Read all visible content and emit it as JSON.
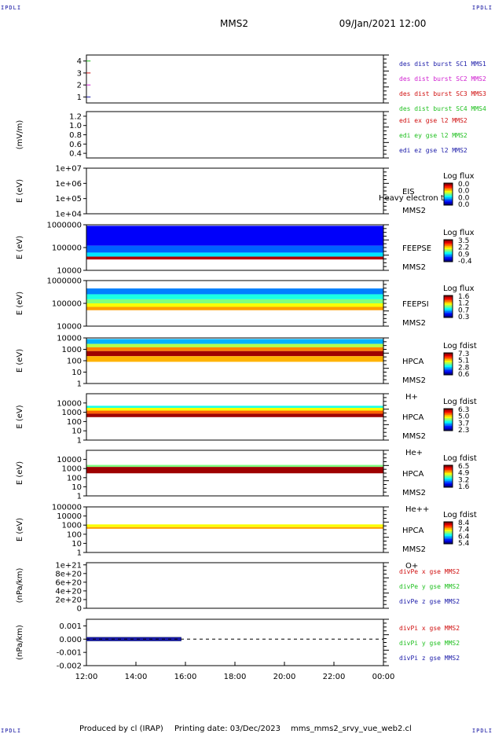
{
  "corners": {
    "tl": "IPDLI",
    "tr": "IPDLI",
    "bl": "IPDLI",
    "br": "IPDLI"
  },
  "header": {
    "title": "MMS2",
    "datetime": "09/Jan/2021 12:00"
  },
  "footer": {
    "producer": "Produced by cl (IRAP)",
    "printing": "Printing date: 03/Dec/2023",
    "script": "mms_mms2_srvy_vue_web2.cl"
  },
  "x_axis": {
    "ticks": [
      "12:00",
      "14:00",
      "16:00",
      "18:00",
      "20:00",
      "22:00",
      "00:00"
    ]
  },
  "colors": {
    "blue": "#1a1aa8",
    "magenta": "#d020d0",
    "red": "#d01010",
    "green": "#20c020",
    "spectrogram_bg": "#0000c8"
  },
  "chart_data": [
    {
      "type": "line",
      "panel": "des-dist-burst",
      "ylabel": "",
      "yticks": [
        "1",
        "2",
        "3",
        "4"
      ],
      "ylim": [
        0.5,
        4.5
      ],
      "series": [
        {
          "name": "des dist burst SC1 MMS1",
          "color": "#1a1aa8",
          "x": [
            "12:00",
            "12:10"
          ],
          "values": [
            1,
            1
          ]
        },
        {
          "name": "des dist burst SC2 MMS2",
          "color": "#d020d0",
          "x": [
            "12:00",
            "12:10"
          ],
          "values": [
            2,
            2
          ]
        },
        {
          "name": "des dist burst SC3 MMS3",
          "color": "#d01010",
          "x": [
            "12:00",
            "12:10"
          ],
          "values": [
            3,
            3
          ]
        },
        {
          "name": "des dist burst SC4 MMS4",
          "color": "#20c020",
          "x": [
            "12:00",
            "12:10"
          ],
          "values": [
            4,
            4
          ]
        }
      ]
    },
    {
      "type": "line",
      "panel": "edi-e-field",
      "ylabel": "(mV/m)",
      "yticks": [
        "0.4",
        "0.6",
        "0.8",
        "1.0",
        "1.2"
      ],
      "ylim": [
        0.3,
        1.3
      ],
      "series": [
        {
          "name": "edi ex gse l2 MMS2",
          "color": "#d01010",
          "x": [],
          "values": []
        },
        {
          "name": "edi ey gse l2 MMS2",
          "color": "#20c020",
          "x": [],
          "values": []
        },
        {
          "name": "edi ez gse l2 MMS2",
          "color": "#1a1aa8",
          "x": [],
          "values": []
        }
      ]
    },
    {
      "type": "heatmap",
      "panel": "eis",
      "ylabel": "E (eV)",
      "yticks": [
        "1e+04",
        "1e+05",
        "1e+06",
        "1e+07"
      ],
      "ylim": [
        10000,
        10000000
      ],
      "label": [
        "EIS",
        "MMS2"
      ],
      "overlay_text": "Heavy electron tc",
      "colorbar_title": "Log flux",
      "colorbar_ticks": [
        "0.0",
        "0.0",
        "0.0",
        "0.0"
      ],
      "bands": []
    },
    {
      "type": "heatmap",
      "panel": "feeps-e",
      "ylabel": "E (eV)",
      "yticks": [
        "10000",
        "100000",
        "1000000"
      ],
      "ylim": [
        10000,
        1000000
      ],
      "label": [
        "FEEPSE",
        "MMS2"
      ],
      "colorbar_title": "Log flux",
      "colorbar_ticks": [
        "3.5",
        "2.2",
        "0.9",
        "-0.4"
      ],
      "bands": [
        {
          "e_from": 900000,
          "e_to": 120000,
          "level": 0.12
        },
        {
          "e_from": 120000,
          "e_to": 60000,
          "level": 0.22
        },
        {
          "e_from": 60000,
          "e_to": 40000,
          "level": 0.35
        },
        {
          "e_from": 40000,
          "e_to": 30000,
          "level": 0.95
        }
      ]
    },
    {
      "type": "heatmap",
      "panel": "feeps-i",
      "ylabel": "E (eV)",
      "yticks": [
        "10000",
        "100000",
        "1000000"
      ],
      "ylim": [
        10000,
        1000000
      ],
      "label": [
        "FEEPSI",
        "MMS2"
      ],
      "colorbar_title": "Log flux",
      "colorbar_ticks": [
        "1.6",
        "1.2",
        "0.7",
        "0.3"
      ],
      "bands": [
        {
          "e_from": 450000,
          "e_to": 250000,
          "level": 0.25
        },
        {
          "e_from": 250000,
          "e_to": 150000,
          "level": 0.4
        },
        {
          "e_from": 150000,
          "e_to": 100000,
          "level": 0.5
        },
        {
          "e_from": 100000,
          "e_to": 70000,
          "level": 0.62
        },
        {
          "e_from": 70000,
          "e_to": 50000,
          "level": 0.72
        }
      ]
    },
    {
      "type": "heatmap",
      "panel": "hpca-h",
      "ylabel": "E (eV)",
      "yticks": [
        "1",
        "10",
        "100",
        "1000",
        "10000"
      ],
      "ylim": [
        1,
        10000
      ],
      "label": [
        "HPCA",
        "MMS2",
        "H+"
      ],
      "colorbar_title": "Log fdist",
      "colorbar_ticks": [
        "7.3",
        "5.1",
        "2.8",
        "0.6"
      ],
      "bands": [
        {
          "e_from": 8000,
          "e_to": 3000,
          "level": 0.3
        },
        {
          "e_from": 3000,
          "e_to": 1500,
          "level": 0.55
        },
        {
          "e_from": 1500,
          "e_to": 700,
          "level": 0.75
        },
        {
          "e_from": 700,
          "e_to": 250,
          "level": 0.97
        },
        {
          "e_from": 250,
          "e_to": 80,
          "level": 0.7
        }
      ]
    },
    {
      "type": "heatmap",
      "panel": "hpca-he",
      "ylabel": "E (eV)",
      "yticks": [
        "1",
        "10",
        "100",
        "1000",
        "10000"
      ],
      "ylim": [
        1,
        100000
      ],
      "label": [
        "HPCA",
        "MMS2",
        "He+"
      ],
      "colorbar_title": "Log fdist",
      "colorbar_ticks": [
        "6.3",
        "5.0",
        "3.7",
        "2.3"
      ],
      "bands": [
        {
          "e_from": 5000,
          "e_to": 3000,
          "level": 0.4
        },
        {
          "e_from": 3000,
          "e_to": 1500,
          "level": 0.62
        },
        {
          "e_from": 1500,
          "e_to": 700,
          "level": 0.78
        },
        {
          "e_from": 700,
          "e_to": 300,
          "level": 0.97
        }
      ]
    },
    {
      "type": "heatmap",
      "panel": "hpca-he2",
      "ylabel": "E (eV)",
      "yticks": [
        "1",
        "10",
        "100",
        "1000",
        "10000"
      ],
      "ylim": [
        1,
        100000
      ],
      "label": [
        "HPCA",
        "MMS2",
        "He++"
      ],
      "colorbar_title": "Log fdist",
      "colorbar_ticks": [
        "6.5",
        "4.9",
        "3.2",
        "1.6"
      ],
      "bands": [
        {
          "e_from": 2500,
          "e_to": 1500,
          "level": 0.5
        },
        {
          "e_from": 1500,
          "e_to": 300,
          "level": 0.97
        }
      ]
    },
    {
      "type": "heatmap",
      "panel": "hpca-o",
      "ylabel": "E (eV)",
      "yticks": [
        "1",
        "10",
        "100",
        "1000",
        "10000",
        "100000"
      ],
      "ylim": [
        1,
        100000
      ],
      "label": [
        "HPCA",
        "MMS2",
        "O+"
      ],
      "colorbar_title": "Log fdist",
      "colorbar_ticks": [
        "8.4",
        "7.4",
        "6.4",
        "5.4"
      ],
      "bands": [
        {
          "e_from": 1200,
          "e_to": 600,
          "level": 0.62
        },
        {
          "e_from": 600,
          "e_to": 400,
          "level": 0.72
        }
      ]
    },
    {
      "type": "line",
      "panel": "divpe",
      "ylabel": "(nPa/km)",
      "yticks": [
        "0",
        "2e+20",
        "4e+20",
        "6e+20",
        "8e+20",
        "1e+21"
      ],
      "ylim": [
        0,
        1.05e+21
      ],
      "series": [
        {
          "name": "divPe x gse MMS2",
          "color": "#d01010",
          "x": [],
          "values": []
        },
        {
          "name": "divPe y gse MMS2",
          "color": "#20c020",
          "x": [],
          "values": []
        },
        {
          "name": "divPe z gse MMS2",
          "color": "#1a1aa8",
          "x": [],
          "values": []
        }
      ]
    },
    {
      "type": "line",
      "panel": "divpi",
      "ylabel": "(nPa/km)",
      "yticks": [
        "-0.002",
        "-0.001",
        "0.000",
        "0.001"
      ],
      "ylim": [
        -0.002,
        0.0015
      ],
      "series": [
        {
          "name": "divPi x gse MMS2",
          "color": "#d01010",
          "x": [
            "12:00",
            "15:50"
          ],
          "values": [
            0,
            0
          ]
        },
        {
          "name": "divPi y gse MMS2",
          "color": "#20c020",
          "x": [
            "12:00",
            "15:50"
          ],
          "values": [
            0,
            0
          ]
        },
        {
          "name": "divPi z gse MMS2",
          "color": "#1a1aa8",
          "x": [
            "12:00",
            "15:50"
          ],
          "values": [
            0,
            0
          ]
        }
      ]
    }
  ]
}
